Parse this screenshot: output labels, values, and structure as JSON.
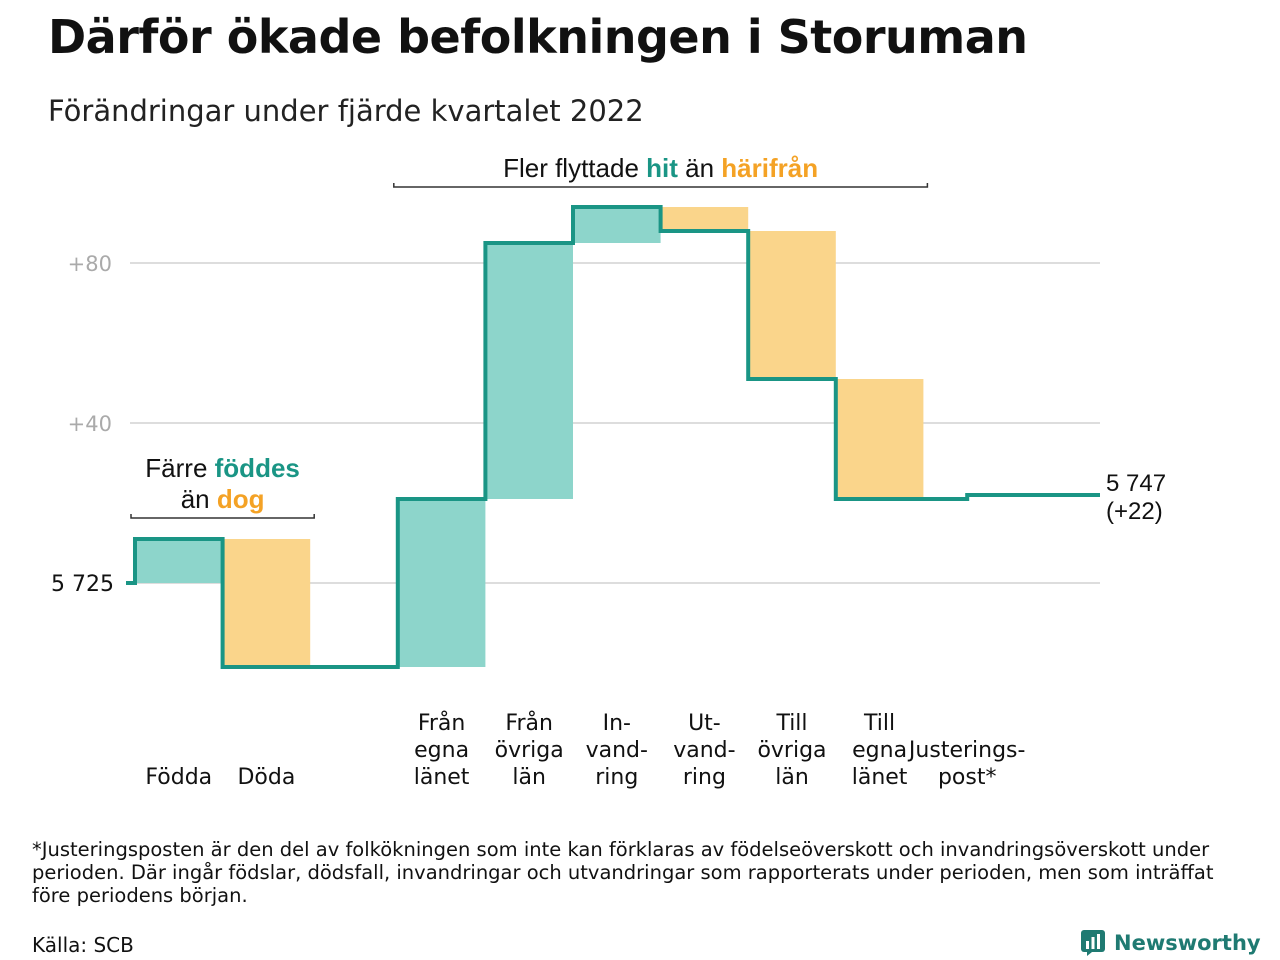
{
  "title": "Därför ökade befolkningen i Storuman",
  "subtitle": "Förändringar under fjärde kvartalet 2022",
  "footnote": "*Justeringsposten är den del av folkökningen som inte kan förklaras av födelseöverskott och invandringsöverskott under perioden. Där ingår födslar, dödsfall, invandringar och utvandringar som rapporterats under perioden, men som inträffat före periodens början.",
  "source": "Källa: SCB",
  "brand": "Newsworthy",
  "colors": {
    "positive_fill": "#8dd5cb",
    "negative_fill": "#fad58b",
    "line": "#1a9585",
    "teal_text": "#1a9585",
    "orange_text": "#f4a225",
    "grid": "#dddddd",
    "tick": "#aaaaaa"
  },
  "chart_data": {
    "type": "waterfall",
    "baseline": 5725,
    "baseline_label": "5 725",
    "end_label_line1": "5 747",
    "end_label_line2": "(+22)",
    "y_ticks": [
      {
        "value": 40,
        "label": "+40"
      },
      {
        "value": 80,
        "label": "+80"
      }
    ],
    "ylim": [
      -25,
      98
    ],
    "steps": [
      {
        "label": [
          "Födda"
        ],
        "delta": 11,
        "kind": "pos"
      },
      {
        "label": [
          "Döda"
        ],
        "delta": -32,
        "kind": "neg"
      },
      {
        "label": [],
        "delta": 0,
        "kind": "gap"
      },
      {
        "label": [
          "Från",
          "egna",
          "länet"
        ],
        "delta": 42,
        "kind": "pos"
      },
      {
        "label": [
          "Från",
          "övriga",
          "län"
        ],
        "delta": 64,
        "kind": "pos"
      },
      {
        "label": [
          "In-",
          "vand-",
          "ring"
        ],
        "delta": 9,
        "kind": "pos"
      },
      {
        "label": [
          "Ut-",
          "vand-",
          "ring"
        ],
        "delta": -6,
        "kind": "neg"
      },
      {
        "label": [
          "Till",
          "övriga",
          "län"
        ],
        "delta": -37,
        "kind": "neg"
      },
      {
        "label": [
          "Till",
          "egna",
          "länet"
        ],
        "delta": -30,
        "kind": "neg"
      },
      {
        "label": [
          "Justerings-",
          "post*"
        ],
        "delta": 1,
        "kind": "adj"
      }
    ],
    "annotations": [
      {
        "id": "births",
        "parts": [
          [
            {
              "text": "Färre ",
              "color": "dark"
            },
            {
              "text": "föddes",
              "color": "teal"
            }
          ],
          [
            {
              "text": "än ",
              "color": "dark"
            },
            {
              "text": "dog",
              "color": "orange"
            }
          ]
        ]
      },
      {
        "id": "moves",
        "parts": [
          [
            {
              "text": "Fler flyttade ",
              "color": "dark"
            },
            {
              "text": "hit",
              "color": "teal"
            },
            {
              "text": " än ",
              "color": "dark"
            },
            {
              "text": "härifrån",
              "color": "orange"
            }
          ]
        ]
      }
    ]
  }
}
